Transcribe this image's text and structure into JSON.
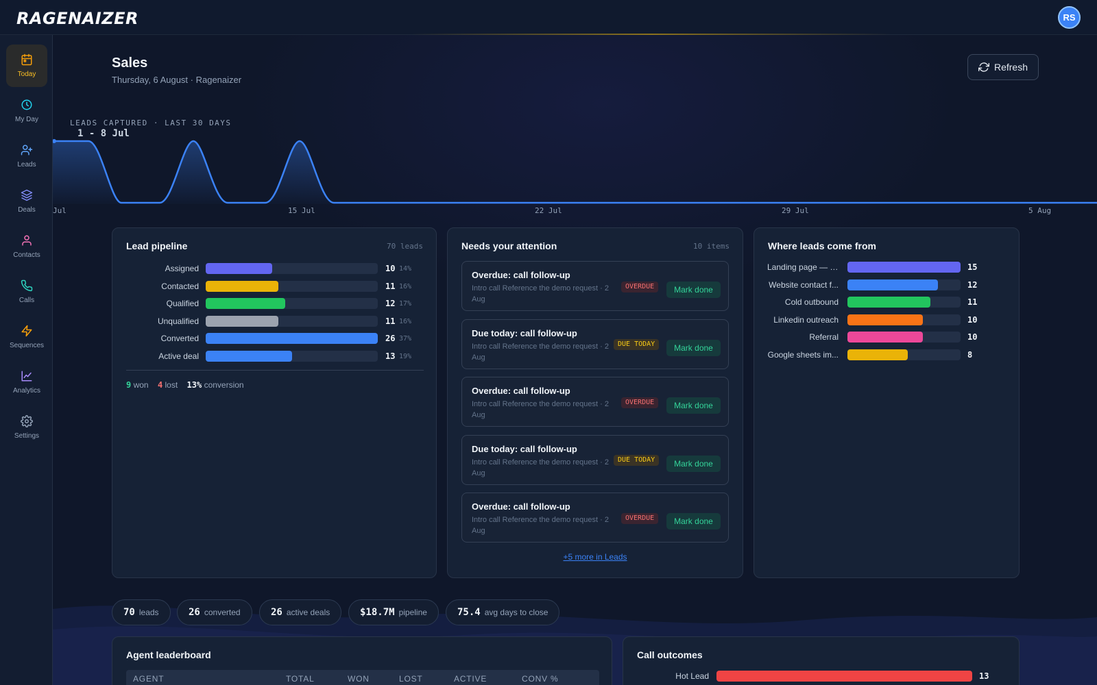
{
  "app": {
    "name": "RAGENAIZER",
    "user_initials": "RS"
  },
  "sidebar": {
    "items": [
      {
        "label": "Today",
        "icon": "calendar-icon",
        "active": true,
        "color": "#f59e0b"
      },
      {
        "label": "My Day",
        "icon": "clock-icon",
        "active": false,
        "color": "#22d3ee"
      },
      {
        "label": "Leads",
        "icon": "user-plus-icon",
        "active": false,
        "color": "#60a5fa"
      },
      {
        "label": "Deals",
        "icon": "layers-icon",
        "active": false,
        "color": "#818cf8"
      },
      {
        "label": "Contacts",
        "icon": "user-icon",
        "active": false,
        "color": "#f472b6"
      },
      {
        "label": "Calls",
        "icon": "phone-icon",
        "active": false,
        "color": "#2dd4bf"
      },
      {
        "label": "Sequences",
        "icon": "zap-icon",
        "active": false,
        "color": "#f59e0b"
      },
      {
        "label": "Analytics",
        "icon": "chart-line-icon",
        "active": false,
        "color": "#a78bfa"
      },
      {
        "label": "Settings",
        "icon": "gear-icon",
        "active": false,
        "color": "#94a3b8"
      }
    ]
  },
  "header": {
    "title": "Sales",
    "subtitle": "Thursday, 6 August · Ragenaizer",
    "refresh_label": "Refresh"
  },
  "trend": {
    "label": "LEADS CAPTURED · LAST 30 DAYS",
    "range": "1 - 8 Jul",
    "x_ticks": [
      "Jul",
      "15 Jul",
      "22 Jul",
      "29 Jul",
      "5 Aug"
    ],
    "line_color": "#3b82f6"
  },
  "pipeline": {
    "title": "Lead pipeline",
    "meta": "70 leads",
    "rows": [
      {
        "label": "Assigned",
        "value": 10,
        "pct": "14%",
        "share": 0.385,
        "color": "#6366f1"
      },
      {
        "label": "Contacted",
        "value": 11,
        "pct": "16%",
        "share": 0.423,
        "color": "#eab308"
      },
      {
        "label": "Qualified",
        "value": 12,
        "pct": "17%",
        "share": 0.462,
        "color": "#22c55e"
      },
      {
        "label": "Unqualified",
        "value": 11,
        "pct": "16%",
        "share": 0.423,
        "color": "#9ca3af"
      },
      {
        "label": "Converted",
        "value": 26,
        "pct": "37%",
        "share": 1.0,
        "color": "#3b82f6"
      },
      {
        "label": "Active deal",
        "value": 13,
        "pct": "19%",
        "share": 0.5,
        "color": "#3b82f6"
      }
    ],
    "summary": {
      "won": "9",
      "won_label": "won",
      "lost": "4",
      "lost_label": "lost",
      "conversion": "13%",
      "conversion_label": "conversion"
    }
  },
  "attention": {
    "title": "Needs your attention",
    "meta": "10 items",
    "items": [
      {
        "title": "Overdue: call follow-up",
        "desc": "Intro call Reference the demo request · 2 Aug",
        "badge": "OVERDUE",
        "kind": "overdue",
        "action": "Mark done"
      },
      {
        "title": "Due today: call follow-up",
        "desc": "Intro call Reference the demo request · 2 Aug",
        "badge": "DUE TODAY",
        "kind": "due",
        "action": "Mark done"
      },
      {
        "title": "Overdue: call follow-up",
        "desc": "Intro call Reference the demo request · 2 Aug",
        "badge": "OVERDUE",
        "kind": "overdue",
        "action": "Mark done"
      },
      {
        "title": "Due today: call follow-up",
        "desc": "Intro call Reference the demo request · 2 Aug",
        "badge": "DUE TODAY",
        "kind": "due",
        "action": "Mark done"
      },
      {
        "title": "Overdue: call follow-up",
        "desc": "Intro call Reference the demo request · 2 Aug",
        "badge": "OVERDUE",
        "kind": "overdue",
        "action": "Mark done"
      }
    ],
    "more_link": "+5 more in Leads"
  },
  "sources": {
    "title": "Where leads come from",
    "rows": [
      {
        "label": "Landing page — d...",
        "value": 15,
        "share": 1.0,
        "color": "#6366f1"
      },
      {
        "label": "Website contact f...",
        "value": 12,
        "share": 0.8,
        "color": "#3b82f6"
      },
      {
        "label": "Cold outbound",
        "value": 11,
        "share": 0.733,
        "color": "#22c55e"
      },
      {
        "label": "Linkedin outreach",
        "value": 10,
        "share": 0.667,
        "color": "#f97316"
      },
      {
        "label": "Referral",
        "value": 10,
        "share": 0.667,
        "color": "#ec4899"
      },
      {
        "label": "Google sheets im...",
        "value": 8,
        "share": 0.533,
        "color": "#eab308"
      }
    ]
  },
  "kpis": [
    {
      "value": "70",
      "label": "leads"
    },
    {
      "value": "26",
      "label": "converted"
    },
    {
      "value": "26",
      "label": "active deals"
    },
    {
      "value": "$18.7M",
      "label": "pipeline"
    },
    {
      "value": "75.4",
      "label": "avg days to close"
    }
  ],
  "leaderboard": {
    "title": "Agent leaderboard",
    "columns": [
      "AGENT",
      "TOTAL",
      "WON",
      "LOST",
      "ACTIVE",
      "CONV %"
    ]
  },
  "call_outcomes": {
    "title": "Call outcomes",
    "rows": [
      {
        "label": "Hot Lead",
        "value": 13,
        "share": 1.0,
        "color": "#ef4444"
      }
    ]
  }
}
